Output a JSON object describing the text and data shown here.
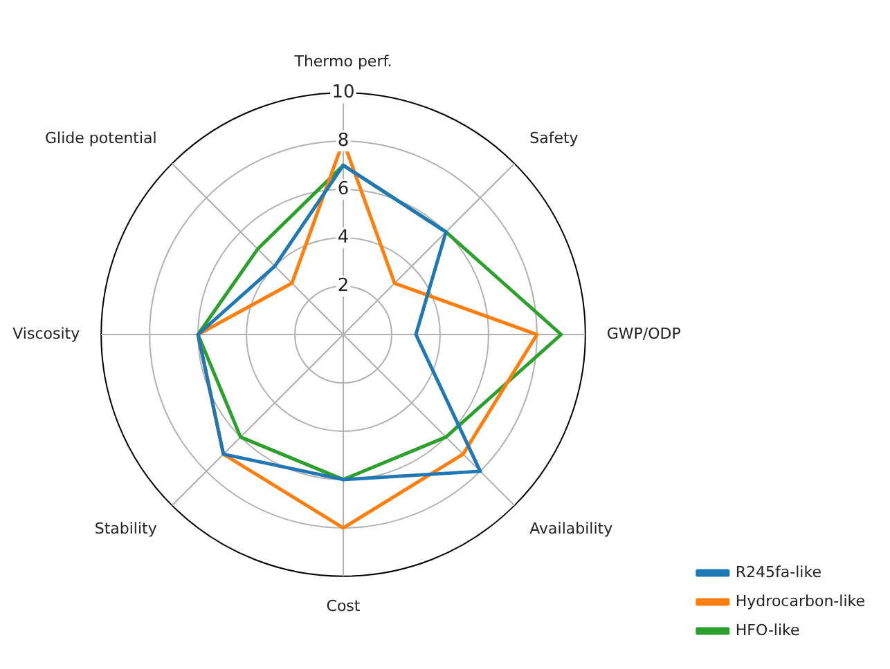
{
  "chart_data": {
    "type": "radar",
    "categories": [
      "Thermo perf.",
      "Safety",
      "GWP/ODP",
      "Availability",
      "Cost",
      "Stability",
      "Viscosity",
      "Glide potential"
    ],
    "series": [
      {
        "name": "R245fa-like",
        "color": "#1f77b4",
        "values": [
          7,
          6,
          3,
          8,
          6,
          7,
          6,
          4
        ]
      },
      {
        "name": "Hydrocarbon-like",
        "color": "#ff7f0e",
        "values": [
          8,
          3,
          8,
          7,
          8,
          7,
          6,
          3
        ]
      },
      {
        "name": "HFO-like",
        "color": "#2ca02c",
        "values": [
          7,
          6,
          9,
          6,
          6,
          6,
          6,
          5
        ]
      }
    ],
    "ylim": [
      0,
      10
    ],
    "yticks": [
      2,
      4,
      6,
      8,
      10
    ],
    "grid": true,
    "legend": "bottom right",
    "marker": "none",
    "line_style": "solid"
  }
}
